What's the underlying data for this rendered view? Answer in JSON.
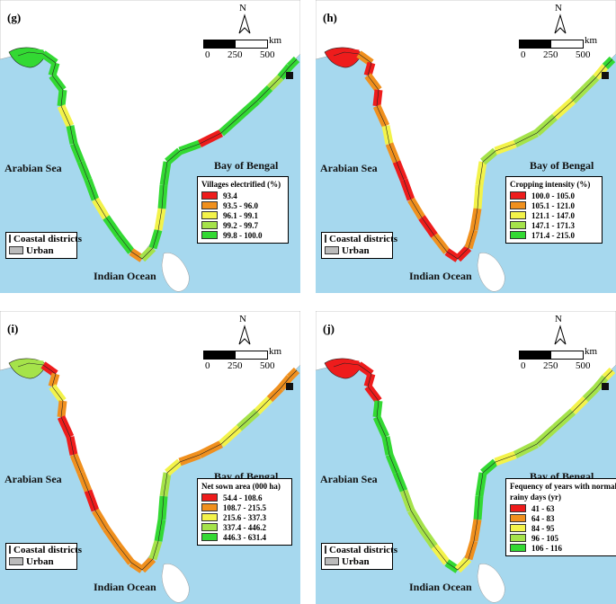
{
  "common": {
    "north": "N",
    "km": "km",
    "scale_ticks": [
      "0",
      "250",
      "500"
    ],
    "arabian_sea": "Arabian Sea",
    "bay_of_bengal": "Bay of Bengal",
    "indian_ocean": "Indian Ocean",
    "coastal_districts": "Coastal districts",
    "urban": "Urban",
    "colors": {
      "sea": "#a6d8ee",
      "land": "#ffffff",
      "red": "#ee1c1c",
      "orange": "#f0901e",
      "yellow": "#f3f34a",
      "lightgreen": "#a5e34a",
      "green": "#33d933"
    }
  },
  "panels": [
    {
      "label": "(g)",
      "legend_title": "Villages electrified (%)",
      "classes": [
        {
          "range": "93.4",
          "color": "#ee1c1c"
        },
        {
          "range": "93.5 - 96.0",
          "color": "#f0901e"
        },
        {
          "range": "96.1 - 99.1",
          "color": "#f3f34a"
        },
        {
          "range": "99.2 - 99.7",
          "color": "#a5e34a"
        },
        {
          "range": "99.8 - 100.0",
          "color": "#33d933"
        }
      ]
    },
    {
      "label": "(h)",
      "legend_title": "Cropping intensity (%)",
      "classes": [
        {
          "range": "100.0 - 105.0",
          "color": "#ee1c1c"
        },
        {
          "range": "105.1 - 121.0",
          "color": "#f0901e"
        },
        {
          "range": "121.1 - 147.0",
          "color": "#f3f34a"
        },
        {
          "range": "147.1 - 171.3",
          "color": "#a5e34a"
        },
        {
          "range": "171.4 - 215.0",
          "color": "#33d933"
        }
      ]
    },
    {
      "label": "(i)",
      "legend_title": "Net sown area (000 ha)",
      "classes": [
        {
          "range": "54.4 - 108.6",
          "color": "#ee1c1c"
        },
        {
          "range": "108.7 - 215.5",
          "color": "#f0901e"
        },
        {
          "range": "215.6 - 337.3",
          "color": "#f3f34a"
        },
        {
          "range": "337.4 - 446.2",
          "color": "#a5e34a"
        },
        {
          "range": "446.3 - 631.4",
          "color": "#33d933"
        }
      ]
    },
    {
      "label": "(j)",
      "legend_title": "Fequency of years with normal rainy days (yr)",
      "legend_title_line1": "Fequency of years with normal",
      "legend_title_line2": "rainy days (yr)",
      "classes": [
        {
          "range": "41 - 63",
          "color": "#ee1c1c"
        },
        {
          "range": "64 - 83",
          "color": "#f0901e"
        },
        {
          "range": "84 - 95",
          "color": "#f3f34a"
        },
        {
          "range": "96 - 105",
          "color": "#a5e34a"
        },
        {
          "range": "106 - 116",
          "color": "#33d933"
        }
      ]
    }
  ]
}
